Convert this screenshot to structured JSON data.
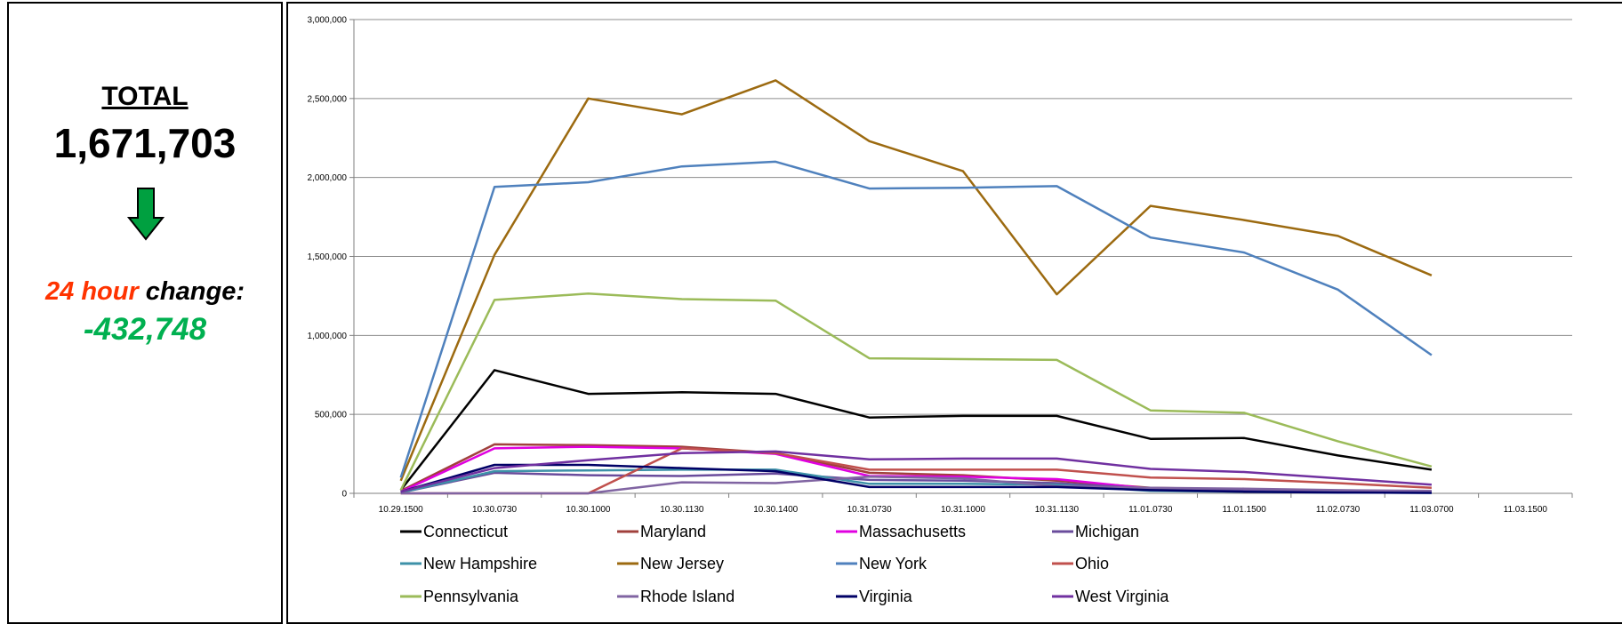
{
  "summary": {
    "total_label": "TOTAL",
    "total_value": "1,671,703",
    "change_label_highlight": "24 hour",
    "change_label_rest": " change:",
    "change_value": "-432,748",
    "arrow_icon": "down-arrow-icon",
    "arrow_color": "#00a040"
  },
  "chart_data": {
    "type": "line",
    "title": "",
    "xlabel": "",
    "ylabel": "",
    "ylim": [
      0,
      3000000
    ],
    "y_ticks": [
      0,
      500000,
      1000000,
      1500000,
      2000000,
      2500000,
      3000000
    ],
    "y_tick_labels": [
      "0",
      "500,000",
      "1,000,000",
      "1,500,000",
      "2,000,000",
      "2,500,000",
      "3,000,000"
    ],
    "grid": true,
    "legend_position": "bottom",
    "categories": [
      "10.29.1500",
      "10.30.0730",
      "10.30.1000",
      "10.30.1130",
      "10.30.1400",
      "10.31.0730",
      "10.31.1000",
      "10.31.1130",
      "11.01.0730",
      "11.01.1500",
      "11.02.0730",
      "11.03.0700",
      "11.03.1500"
    ],
    "series": [
      {
        "name": "Connecticut",
        "color": "#000000",
        "values": [
          20000,
          780000,
          630000,
          640000,
          630000,
          480000,
          490000,
          490000,
          345000,
          350000,
          240000,
          150000,
          null
        ]
      },
      {
        "name": "Maryland",
        "color": "#a0403c",
        "values": [
          15000,
          310000,
          305000,
          295000,
          255000,
          130000,
          115000,
          80000,
          35000,
          25000,
          15000,
          10000,
          null
        ]
      },
      {
        "name": "Massachusetts",
        "color": "#e000e0",
        "values": [
          10000,
          285000,
          295000,
          285000,
          250000,
          110000,
          105000,
          90000,
          30000,
          20000,
          10000,
          5000,
          null
        ]
      },
      {
        "name": "Michigan",
        "color": "#6a4c9c",
        "values": [
          5000,
          130000,
          115000,
          110000,
          125000,
          85000,
          80000,
          65000,
          30000,
          20000,
          15000,
          10000,
          null
        ]
      },
      {
        "name": "New Hampshire",
        "color": "#3d91a8",
        "values": [
          5000,
          140000,
          145000,
          150000,
          150000,
          60000,
          60000,
          55000,
          15000,
          10000,
          5000,
          3000,
          null
        ]
      },
      {
        "name": "New Jersey",
        "color": "#9c6a10",
        "values": [
          80000,
          1510000,
          2500000,
          2400000,
          2615000,
          2230000,
          2040000,
          1260000,
          1820000,
          1730000,
          1630000,
          1380000,
          null
        ]
      },
      {
        "name": "New York",
        "color": "#4f81bd",
        "values": [
          100000,
          1940000,
          1970000,
          2070000,
          2100000,
          1930000,
          1935000,
          1945000,
          1620000,
          1525000,
          1290000,
          875000,
          null
        ]
      },
      {
        "name": "Ohio",
        "color": "#c0504d",
        "values": [
          0,
          0,
          0,
          285000,
          255000,
          150000,
          150000,
          150000,
          100000,
          90000,
          65000,
          35000,
          null
        ]
      },
      {
        "name": "Pennsylvania",
        "color": "#9bbb59",
        "values": [
          20000,
          1225000,
          1265000,
          1230000,
          1220000,
          855000,
          850000,
          845000,
          525000,
          510000,
          330000,
          170000,
          null
        ]
      },
      {
        "name": "Rhode Island",
        "color": "#8064a2",
        "values": [
          0,
          0,
          0,
          70000,
          65000,
          105000,
          95000,
          45000,
          35000,
          30000,
          20000,
          15000,
          null
        ]
      },
      {
        "name": "Virginia",
        "color": "#000066",
        "values": [
          10000,
          180000,
          180000,
          160000,
          140000,
          40000,
          40000,
          40000,
          20000,
          10000,
          5000,
          3000,
          null
        ]
      },
      {
        "name": "West Virginia",
        "color": "#7030a0",
        "values": [
          10000,
          160000,
          210000,
          255000,
          265000,
          215000,
          220000,
          220000,
          155000,
          135000,
          95000,
          55000,
          null
        ]
      }
    ]
  }
}
